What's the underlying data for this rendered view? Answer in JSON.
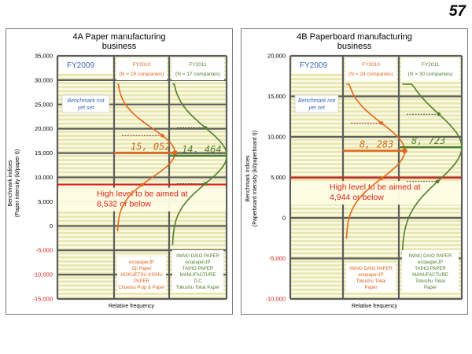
{
  "page_number": "57",
  "colors": {
    "stripe_yellow": "#e9e7ad",
    "stripe_white": "#fbfbee",
    "grid_dark": "#5d5d5d",
    "fy2010_line": "#e2661c",
    "fy2011_line": "#4f7f2a",
    "benchmark_red": "#e0211c",
    "axis_negative": "#d51f1f",
    "fy2009_text": "#3a66b3",
    "value_orange": "#c96a1d",
    "value_green": "#4f7f2a"
  },
  "chart_data": [
    {
      "id": "A",
      "type": "distribution",
      "title": "4A Paper manufacturing business",
      "title_lines": [
        "4A Paper manufacturing",
        "business"
      ],
      "ylabel_lines": [
        "Benchmark indices",
        "(Paper intensity (kl/paper t))"
      ],
      "xlabel": "Relative frequency",
      "ylim": [
        -15000,
        35000
      ],
      "yticks": [
        {
          "value": 35000,
          "label": "35,000"
        },
        {
          "value": 30000,
          "label": "30,000"
        },
        {
          "value": 25000,
          "label": "25,000"
        },
        {
          "value": 20000,
          "label": "20,000"
        },
        {
          "value": 15000,
          "label": "15,000"
        },
        {
          "value": 10000,
          "label": "10,000"
        },
        {
          "value": 5000,
          "label": "5,000"
        },
        {
          "value": 0,
          "label": "0"
        },
        {
          "value": -5000,
          "label": "-5,000"
        },
        {
          "value": -10000,
          "label": "-10,000"
        },
        {
          "value": -15000,
          "label": "-15,000"
        }
      ],
      "columns": [
        {
          "key": "fy2009",
          "label": "FY2009"
        },
        {
          "key": "fy2010",
          "label": "FY2010",
          "sub": "(N = 19 companies)"
        },
        {
          "key": "fy2011",
          "label": "FY2011",
          "sub": "(N = 17 companies)"
        }
      ],
      "note": [
        "Benchmark not",
        "yet set"
      ],
      "series": [
        {
          "name": "FY2010",
          "mean": 15052,
          "mean_label": "15, 052",
          "sd_upper": 18600,
          "sd_lower": 8500
        },
        {
          "name": "FY2011",
          "mean": 14464,
          "mean_label": "14, 464",
          "sd_upper": 20200,
          "sd_lower": 8700
        }
      ],
      "benchmark": {
        "value": 8532,
        "text_lines": [
          "High level to be aimed at",
          "8,532 or below"
        ]
      },
      "achievers": [
        {
          "column": "fy2010",
          "lines": [
            "ecopaperJP",
            "Oji Paper",
            "HOKUETSU KISHU",
            "PAPER",
            "Chuetsu Pulp & Paper"
          ]
        },
        {
          "column": "fy2011",
          "lines": [
            "IWAKI DAIO PAPER",
            "ecopaperJP",
            "TAIHO PAPER",
            "MANUFACTURE",
            "D.C",
            "Tokushu Tokai Paper"
          ]
        }
      ]
    },
    {
      "id": "B",
      "type": "distribution",
      "title": "4B Paperboard manufacturing business",
      "title_lines": [
        "4B Paperboard manufacturing",
        "business"
      ],
      "ylabel_lines": [
        "Benchmark indices",
        "(Paperboard intensity (kl/paperboard t))"
      ],
      "xlabel": "Relative frequency",
      "ylim": [
        -10000,
        20000
      ],
      "yticks": [
        {
          "value": 20000,
          "label": "20,000"
        },
        {
          "value": 15000,
          "label": "15,000"
        },
        {
          "value": 10000,
          "label": "10,000"
        },
        {
          "value": 5000,
          "label": "5,000"
        },
        {
          "value": 0,
          "label": "0"
        },
        {
          "value": -5000,
          "label": "-5,000"
        },
        {
          "value": -10000,
          "label": "-10,000"
        }
      ],
      "columns": [
        {
          "key": "fy2009",
          "label": "FY2009"
        },
        {
          "key": "fy2010",
          "label": "FY2010",
          "sub": "(N = 24 companies)"
        },
        {
          "key": "fy2011",
          "label": "FY2011",
          "sub": "(N = 30 companies)"
        }
      ],
      "note": [
        "Benchmark not",
        "yet set"
      ],
      "series": [
        {
          "name": "FY2010",
          "mean": 8283,
          "mean_label": "8, 283",
          "sd_upper": 11700,
          "sd_lower": 4900
        },
        {
          "name": "FY2011",
          "mean": 8723,
          "mean_label": "8, 723",
          "sd_upper": 12800,
          "sd_lower": 4500
        }
      ],
      "benchmark": {
        "value": 4944,
        "text_lines": [
          "High level to be aimed at",
          "4,944 or below"
        ]
      },
      "achievers": [
        {
          "column": "fy2010",
          "lines": [
            "IWAKI DAIO PAPER",
            "ecopaperJP",
            "Tokushu Tokai",
            "Paper"
          ]
        },
        {
          "column": "fy2011",
          "lines": [
            "IWAKI DAIO PAPER",
            "ecopaperJP",
            "TAIHO PAPER",
            "MANUFACTURE",
            "Tokushu Tokai",
            "Paper"
          ]
        }
      ]
    }
  ]
}
